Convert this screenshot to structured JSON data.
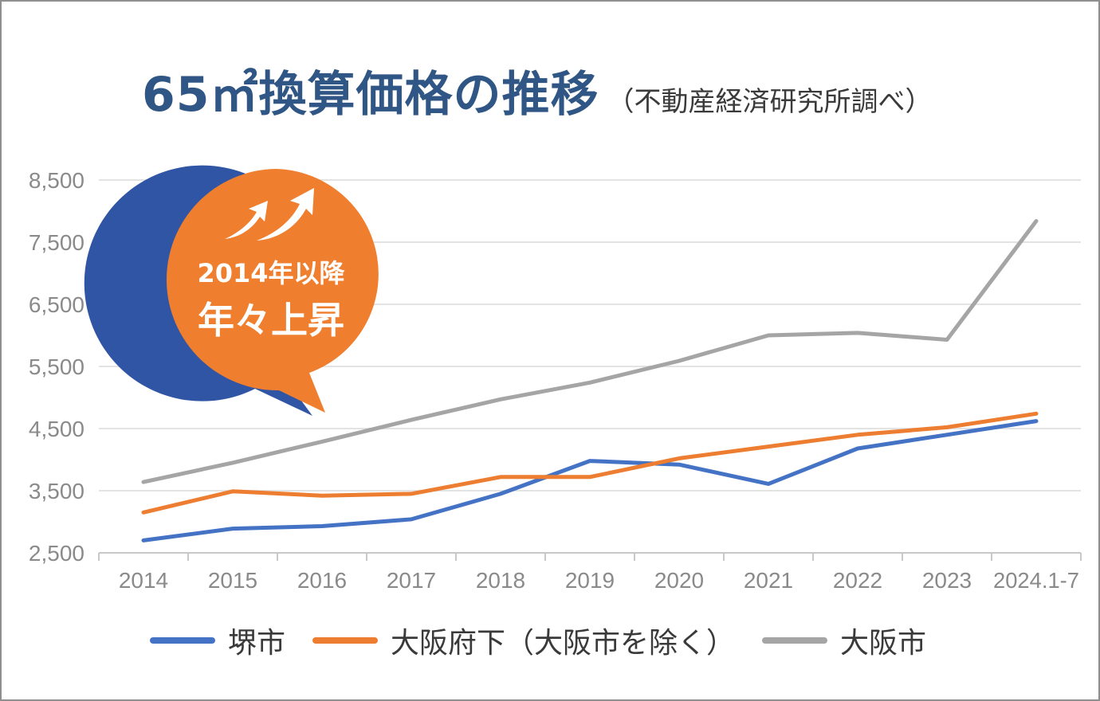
{
  "title": "65㎡換算価格の推移",
  "subtitle": "（不動産経済研究所調べ）",
  "badge": {
    "line1": "2014年以降",
    "line2": "年々上昇",
    "icon": "double-up-arrow-icon",
    "fill": "#ef7f2e",
    "shadow": "#2f55a4"
  },
  "chart_data": {
    "type": "line",
    "categories": [
      "2014",
      "2015",
      "2016",
      "2017",
      "2018",
      "2019",
      "2020",
      "2021",
      "2022",
      "2023",
      "2024.1-7"
    ],
    "ylim": [
      2500,
      8500
    ],
    "yticks": [
      2500,
      3500,
      4500,
      5500,
      6500,
      7500,
      8500
    ],
    "ytick_labels": [
      "2,500",
      "3,500",
      "4,500",
      "5,500",
      "6,500",
      "7,500",
      "8,500"
    ],
    "grid": true,
    "legend_position": "bottom",
    "series": [
      {
        "name": "堺市",
        "color": "#4472c4",
        "values": [
          2700,
          2890,
          2930,
          3040,
          3450,
          3980,
          3920,
          3610,
          4180,
          4400,
          4620
        ]
      },
      {
        "name": "大阪府下（大阪市を除く）",
        "color": "#ed7d31",
        "values": [
          3150,
          3490,
          3420,
          3450,
          3720,
          3720,
          4020,
          4210,
          4400,
          4520,
          4740
        ]
      },
      {
        "name": "大阪市",
        "color": "#a5a5a5",
        "values": [
          3640,
          3950,
          4290,
          4640,
          4970,
          5240,
          5590,
          6000,
          6040,
          5930,
          7840
        ]
      }
    ]
  }
}
